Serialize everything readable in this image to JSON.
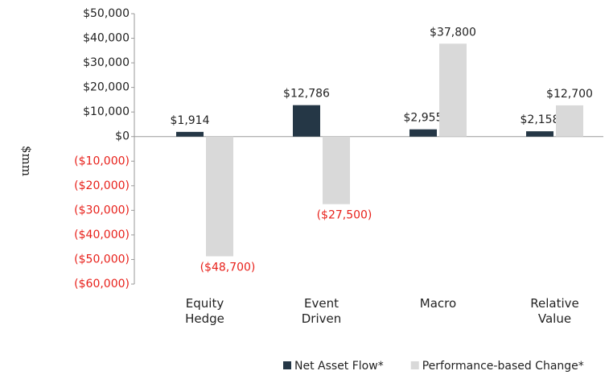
{
  "chart_data": {
    "type": "bar",
    "y_label": "$mm",
    "categories": [
      "Equity Hedge",
      "Event Driven",
      "Macro",
      "Relative Value"
    ],
    "series": [
      {
        "name": "Net Asset Flow*",
        "color": "#253746",
        "values": [
          1914,
          12786,
          2955,
          2158
        ],
        "value_labels": [
          "$1,914",
          "$12,786",
          "$2,955",
          "$2,158"
        ]
      },
      {
        "name": "Performance-based Change*",
        "color": "#d9d9d9",
        "values": [
          -48700,
          -27500,
          37800,
          12700
        ],
        "value_labels": [
          "($48,700)",
          "($27,500)",
          "$37,800",
          "$12,700"
        ]
      }
    ],
    "ylim": [
      -60000,
      50000
    ],
    "yticks": [
      {
        "value": 50000,
        "label": "$50,000"
      },
      {
        "value": 40000,
        "label": "$40,000"
      },
      {
        "value": 30000,
        "label": "$30,000"
      },
      {
        "value": 20000,
        "label": "$20,000"
      },
      {
        "value": 10000,
        "label": "$10,000"
      },
      {
        "value": 0,
        "label": "$0"
      },
      {
        "value": -10000,
        "label": "($10,000)"
      },
      {
        "value": -20000,
        "label": "($20,000)"
      },
      {
        "value": -30000,
        "label": "($30,000)"
      },
      {
        "value": -40000,
        "label": "($40,000)"
      },
      {
        "value": -50000,
        "label": "($50,000)"
      },
      {
        "value": -60000,
        "label": "($60,000)"
      }
    ],
    "negative_label_color": "#e8211b",
    "legend": "bottom"
  }
}
